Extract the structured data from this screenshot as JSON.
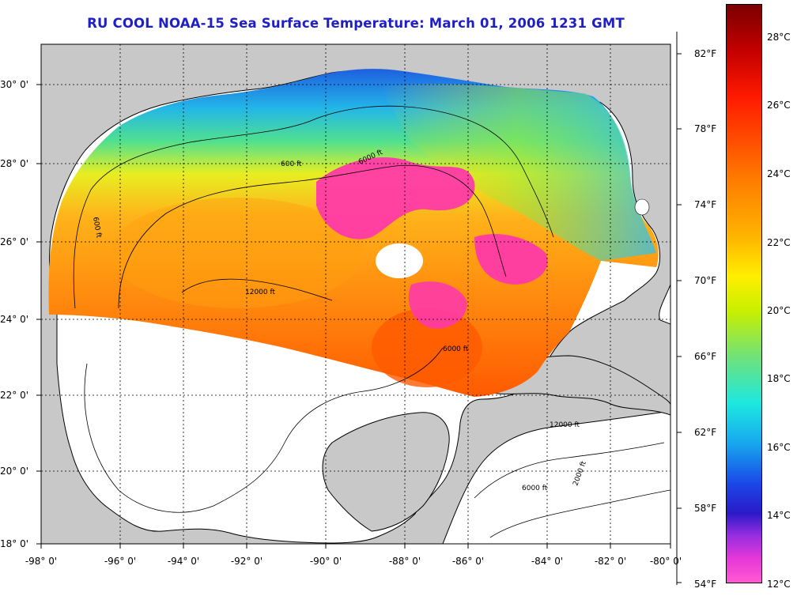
{
  "title": "RU COOL  NOAA-15  Sea Surface Temperature:  March 01, 2006 1231 GMT",
  "map": {
    "lon_ticks": [
      "-98° 0'",
      "-96° 0'",
      "-94° 0'",
      "-92° 0'",
      "-90° 0'",
      "-88° 0'",
      "-86° 0'",
      "-84° 0'",
      "-82° 0'",
      "-80° 0'"
    ],
    "lat_ticks": [
      "30° 0'",
      "28° 0'",
      "26° 0'",
      "24° 0'",
      "22° 0'",
      "20° 0'",
      "18° 0'"
    ],
    "contour_labels": [
      "600 ft",
      "6000 ft",
      "12000 ft",
      "2000 ft"
    ],
    "colors": {
      "land": "#c8c8c8",
      "water": "#ffffff",
      "gridline": "#000000"
    }
  },
  "colorbar": {
    "fahrenheit": [
      "82°F",
      "78°F",
      "74°F",
      "70°F",
      "66°F",
      "62°F",
      "58°F",
      "54°F"
    ],
    "celsius": [
      "28°C",
      "26°C",
      "24°C",
      "22°C",
      "20°C",
      "18°C",
      "16°C",
      "14°C",
      "12°C"
    ]
  }
}
